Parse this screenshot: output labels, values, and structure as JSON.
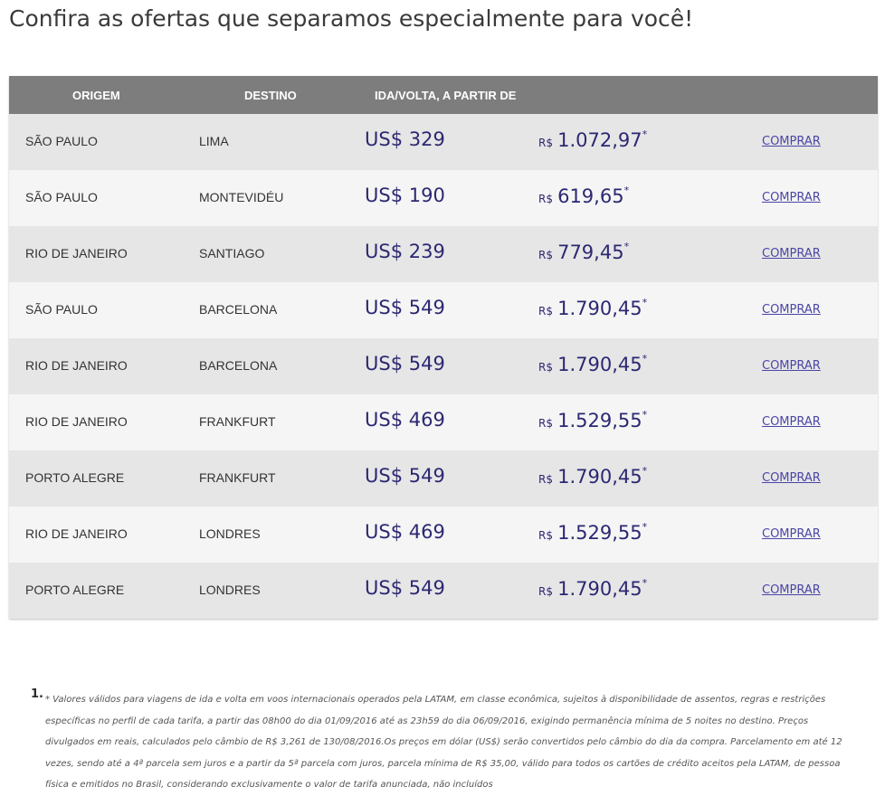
{
  "page": {
    "title": "Confira as ofertas que separamos especialmente para você!"
  },
  "table": {
    "headers": {
      "origem": "ORIGEM",
      "destino": "DESTINO",
      "preco": "IDA/VOLTA, A PARTIR DE"
    },
    "rows": [
      {
        "origem": "SÃO PAULO",
        "destino": "LIMA",
        "usd": "US$ 329",
        "brl_currency": "R$",
        "brl_value": "1.072,97",
        "asterisk": "*",
        "action": "COMPRAR"
      },
      {
        "origem": "SÃO PAULO",
        "destino": "MONTEVIDÉU",
        "usd": "US$ 190",
        "brl_currency": "R$",
        "brl_value": "619,65",
        "asterisk": "*",
        "action": "COMPRAR"
      },
      {
        "origem": "RIO DE JANEIRO",
        "destino": "SANTIAGO",
        "usd": "US$ 239",
        "brl_currency": "R$",
        "brl_value": "779,45",
        "asterisk": "*",
        "action": "COMPRAR"
      },
      {
        "origem": "SÃO PAULO",
        "destino": "BARCELONA",
        "usd": "US$ 549",
        "brl_currency": "R$",
        "brl_value": "1.790,45",
        "asterisk": "*",
        "action": "COMPRAR"
      },
      {
        "origem": "RIO DE JANEIRO",
        "destino": "BARCELONA",
        "usd": "US$ 549",
        "brl_currency": "R$",
        "brl_value": "1.790,45",
        "asterisk": "*",
        "action": "COMPRAR"
      },
      {
        "origem": "RIO DE JANEIRO",
        "destino": "FRANKFURT",
        "usd": "US$ 469",
        "brl_currency": "R$",
        "brl_value": "1.529,55",
        "asterisk": "*",
        "action": "COMPRAR"
      },
      {
        "origem": "PORTO ALEGRE",
        "destino": "FRANKFURT",
        "usd": "US$ 549",
        "brl_currency": "R$",
        "brl_value": "1.790,45",
        "asterisk": "*",
        "action": "COMPRAR"
      },
      {
        "origem": "RIO DE JANEIRO",
        "destino": "LONDRES",
        "usd": "US$ 469",
        "brl_currency": "R$",
        "brl_value": "1.529,55",
        "asterisk": "*",
        "action": "COMPRAR"
      },
      {
        "origem": "PORTO ALEGRE",
        "destino": "LONDRES",
        "usd": "US$ 549",
        "brl_currency": "R$",
        "brl_value": "1.790,45",
        "asterisk": "*",
        "action": "COMPRAR"
      }
    ]
  },
  "footnote": {
    "number": "1.",
    "text": "* Valores válidos para viagens de ida e volta em voos internacionais operados pela LATAM, em classe econômica, sujeitos à disponibilidade de assentos, regras e restrições específicas no perfil de cada tarifa, a partir das 08h00 do dia 01/09/2016 até as 23h59 do dia 06/09/2016, exigindo permanência mínima de 5 noites no destino. Preços divulgados em reais, calculados pelo câmbio de R$ 3,261 de 130/08/2016.Os preços em dólar (US$) serão convertidos pelo câmbio do dia da compra. Parcelamento em até 12 vezes, sendo até a 4ª parcela sem juros e a partir da 5ª parcela com juros, parcela mínima de R$ 35,00, válido para todos os cartões de crédito aceitos pela LATAM, de pessoa física e emitidos no Brasil, considerando exclusivamente o valor de tarifa anunciada, não incluídos"
  }
}
